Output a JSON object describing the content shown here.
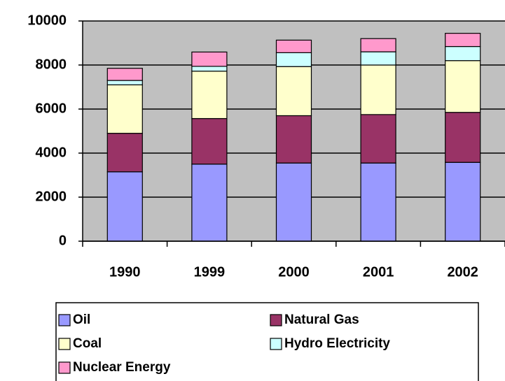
{
  "chart_data": {
    "type": "stacked_bar",
    "categories": [
      "1990",
      "1999",
      "2000",
      "2001",
      "2002"
    ],
    "series": [
      {
        "name": "Oil",
        "color": "#9999ff",
        "values": [
          3150,
          3500,
          3550,
          3550,
          3580
        ]
      },
      {
        "name": "Natural Gas",
        "color": "#993366",
        "values": [
          1750,
          2070,
          2150,
          2200,
          2270
        ]
      },
      {
        "name": "Coal",
        "color": "#ffffcc",
        "values": [
          2200,
          2150,
          2230,
          2250,
          2350
        ]
      },
      {
        "name": "Hydro Electricity",
        "color": "#ccffff",
        "values": [
          200,
          220,
          630,
          600,
          640
        ]
      },
      {
        "name": "Nuclear Energy",
        "color": "#ff99cc",
        "values": [
          550,
          650,
          570,
          600,
          600
        ]
      }
    ],
    "ylim": [
      0,
      10000
    ],
    "yticks": [
      0,
      2000,
      4000,
      6000,
      8000,
      10000
    ],
    "grid": true,
    "legend": "bottom"
  }
}
